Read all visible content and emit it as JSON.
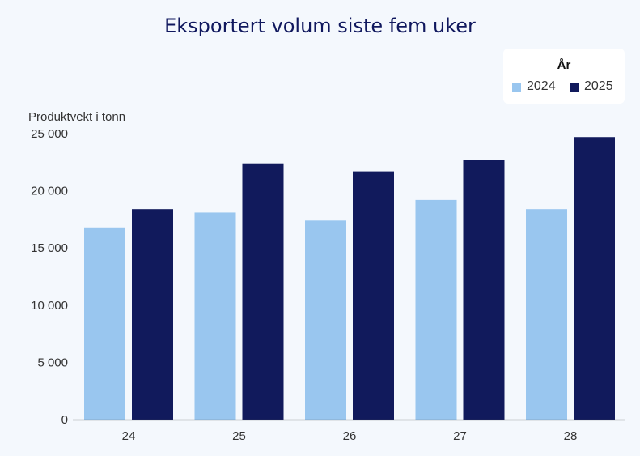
{
  "chart_data": {
    "type": "bar",
    "title": "Eksportert volum siste fem uker",
    "ylabel": "Produktvekt i tonn",
    "xlabel": "",
    "categories": [
      "24",
      "25",
      "26",
      "27",
      "28"
    ],
    "series": [
      {
        "name": "2024",
        "color": "#99c6ef",
        "values": [
          16800,
          18100,
          17400,
          19200,
          18400
        ]
      },
      {
        "name": "2025",
        "color": "#111a5c",
        "values": [
          18400,
          22400,
          21700,
          22700,
          24700
        ]
      }
    ],
    "ylim": [
      0,
      25000
    ],
    "yticks": [
      0,
      5000,
      10000,
      15000,
      20000,
      25000
    ],
    "ytick_labels": [
      "0",
      "5 000",
      "10 000",
      "15 000",
      "20 000",
      "25 000"
    ],
    "grid": false,
    "legend": {
      "title": "År",
      "placement": "top-right"
    }
  }
}
